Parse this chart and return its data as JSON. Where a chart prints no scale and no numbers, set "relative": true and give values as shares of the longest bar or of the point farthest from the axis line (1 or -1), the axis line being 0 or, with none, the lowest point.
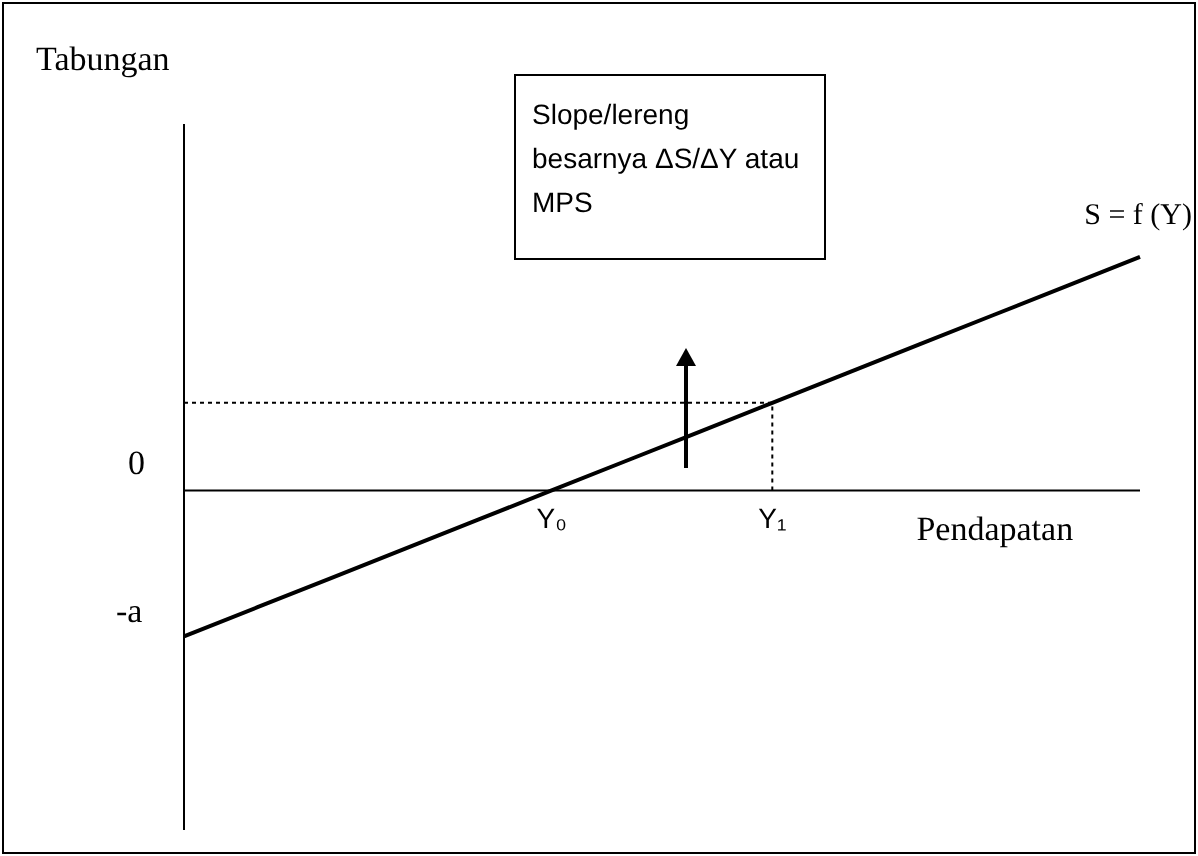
{
  "chart_data": {
    "type": "line",
    "relative": true,
    "xlabel": "Pendapatan",
    "categories": [
      null,
      null,
      null,
      null,
      null,
      "Y₀",
      null,
      null,
      "Y₁",
      null,
      null,
      null,
      null,
      null
    ],
    "series": [
      {
        "name": "S = f (Y)",
        "color": "#000000",
        "values": [
          -0.625,
          -0.5,
          -0.375,
          -0.25,
          -0.125,
          0,
          0.125,
          0.25,
          0.375,
          0.5,
          0.625,
          0.75,
          0.875,
          1
        ]
      }
    ],
    "ref_lines": [
      {
        "axis": "y",
        "value": 0.375,
        "line_style": "dotted"
      },
      {
        "axis": "x",
        "value": "Y₁",
        "line_style": "dotted"
      }
    ],
    "annotations": [
      "Tabungan",
      "0",
      "-a",
      "Slope/lereng besarnya ΔS/ΔY atau MPS"
    ],
    "legend": false
  }
}
